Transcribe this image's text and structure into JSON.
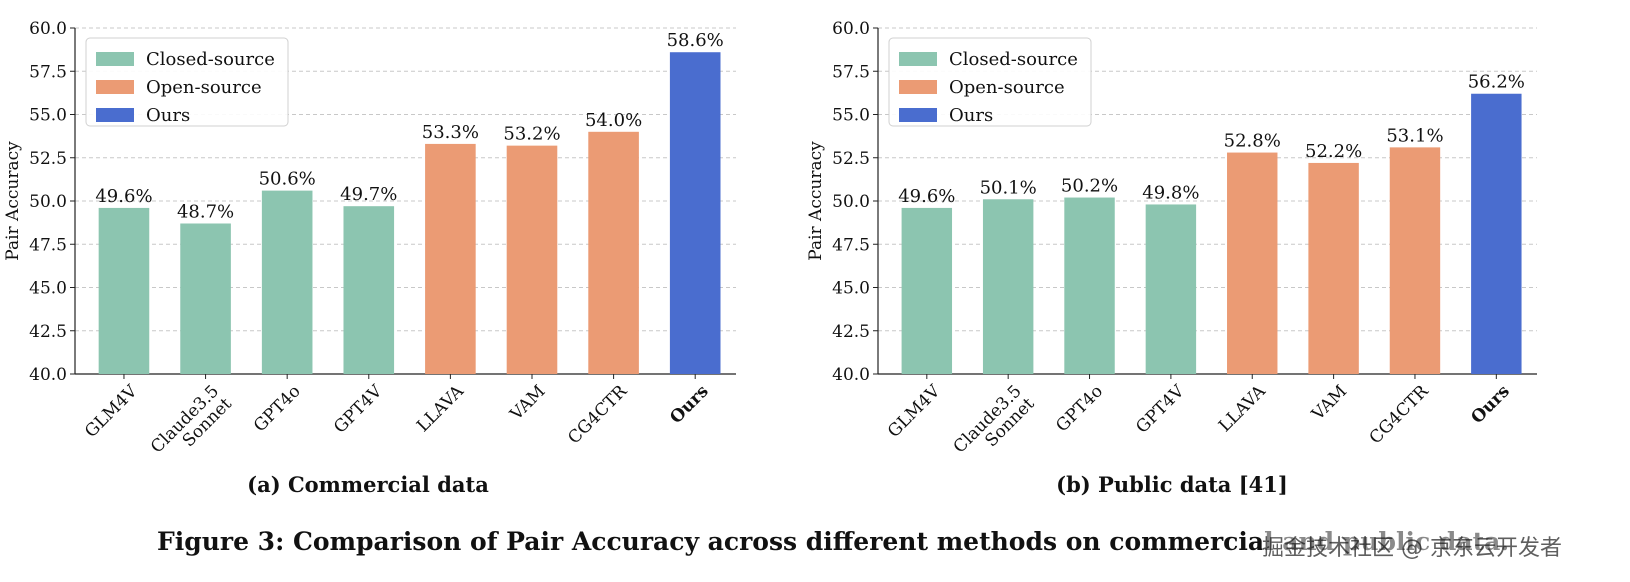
{
  "chart_data": [
    {
      "type": "bar",
      "subtitle": "(a) Commercial data",
      "ylabel": "Pair Accuracy",
      "xlabel": "",
      "ylim": [
        40.0,
        60.0
      ],
      "yticks": [
        "40.0",
        "42.5",
        "45.0",
        "47.5",
        "50.0",
        "52.5",
        "55.0",
        "57.5",
        "60.0"
      ],
      "grid": "horizontal dashed",
      "legend_position": "top-left",
      "categories": [
        "GLM4V",
        "Claude3.5 Sonnet",
        "GPT4o",
        "GPT4V",
        "LLAVA",
        "VAM",
        "CG4CTR",
        "Ours"
      ],
      "values": [
        49.6,
        48.7,
        50.6,
        49.7,
        53.3,
        53.2,
        54.0,
        58.6
      ],
      "labels": [
        "49.6%",
        "48.7%",
        "50.6%",
        "49.7%",
        "53.3%",
        "53.2%",
        "54.0%",
        "58.6%"
      ],
      "groups": [
        "Closed-source",
        "Closed-source",
        "Closed-source",
        "Closed-source",
        "Open-source",
        "Open-source",
        "Open-source",
        "Ours"
      ]
    },
    {
      "type": "bar",
      "subtitle": "(b) Public data [41]",
      "ylabel": "Pair Accuracy",
      "xlabel": "",
      "ylim": [
        40.0,
        60.0
      ],
      "yticks": [
        "40.0",
        "42.5",
        "45.0",
        "47.5",
        "50.0",
        "52.5",
        "55.0",
        "57.5",
        "60.0"
      ],
      "grid": "horizontal dashed",
      "legend_position": "top-left",
      "categories": [
        "GLM4V",
        "Claude3.5 Sonnet",
        "GPT4o",
        "GPT4V",
        "LLAVA",
        "VAM",
        "CG4CTR",
        "Ours"
      ],
      "values": [
        49.6,
        50.1,
        50.2,
        49.8,
        52.8,
        52.2,
        53.1,
        56.2
      ],
      "labels": [
        "49.6%",
        "50.1%",
        "50.2%",
        "49.8%",
        "52.8%",
        "52.2%",
        "53.1%",
        "56.2%"
      ],
      "groups": [
        "Closed-source",
        "Closed-source",
        "Closed-source",
        "Closed-source",
        "Open-source",
        "Open-source",
        "Open-source",
        "Ours"
      ]
    }
  ],
  "legend": [
    {
      "name": "Closed-source",
      "color": "#8cc5b0"
    },
    {
      "name": "Open-source",
      "color": "#eb9b74"
    },
    {
      "name": "Ours",
      "color": "#4a6dcf"
    }
  ],
  "colors": {
    "Closed-source": "#8cc5b0",
    "Open-source": "#eb9b74",
    "Ours": "#4a6dcf"
  },
  "caption": "Figure 3: Comparison of Pair Accuracy across different methods on commercial and public data.",
  "watermark": "掘金技术社区 @ 京东云开发者"
}
